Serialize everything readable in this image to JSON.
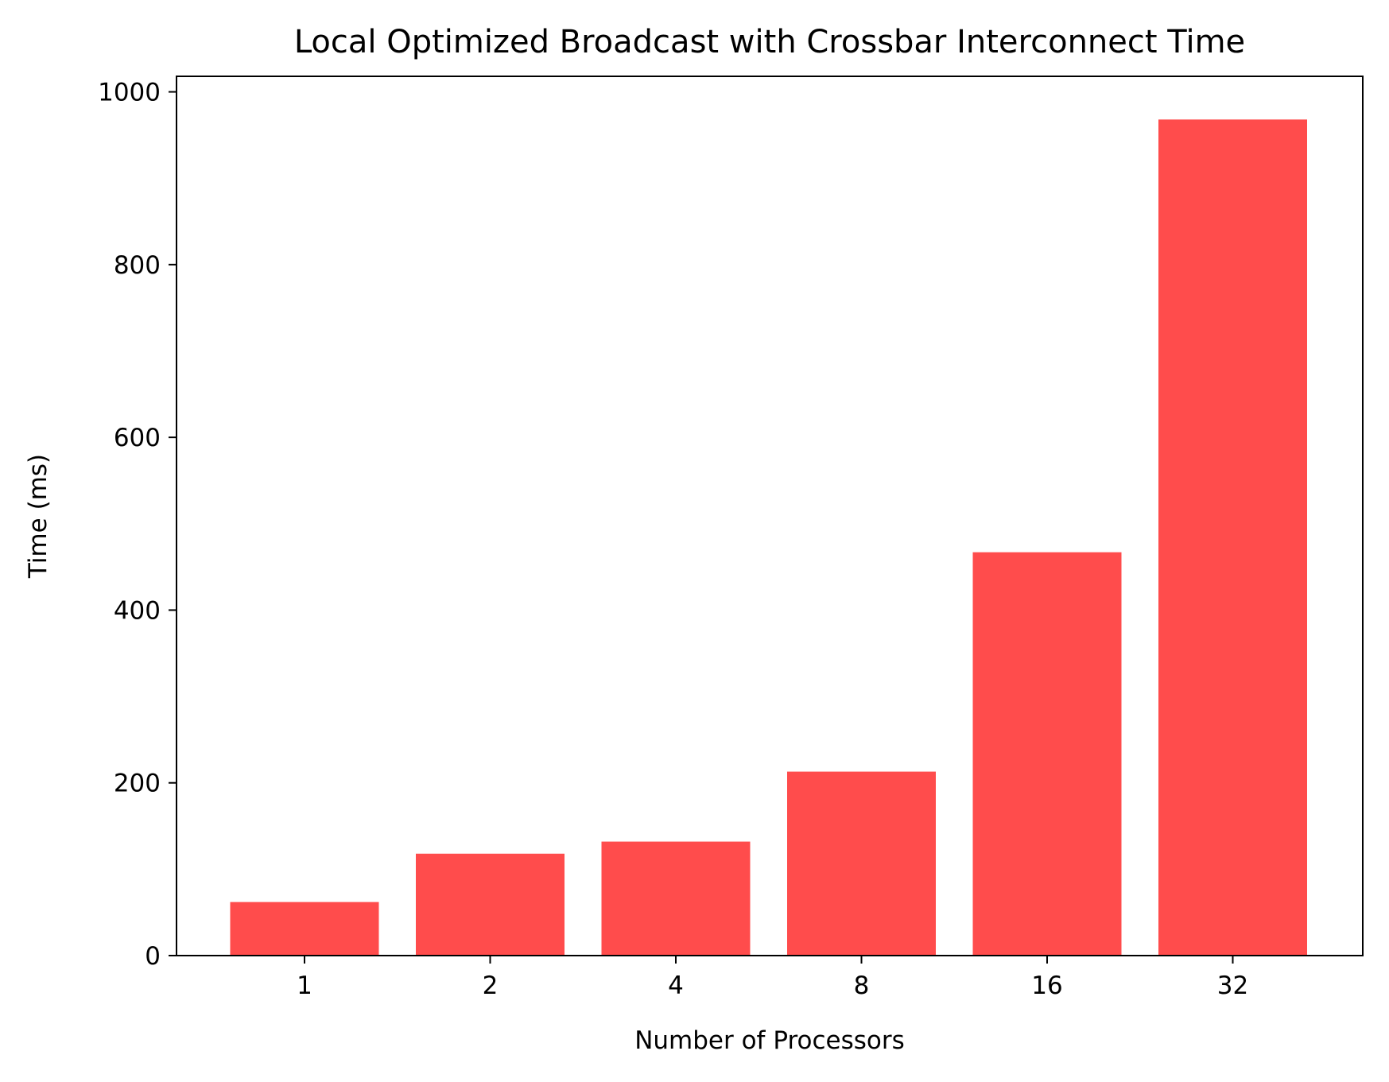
{
  "chart_data": {
    "type": "bar",
    "title": "Local Optimized Broadcast with Crossbar Interconnect Time",
    "xlabel": "Number of Processors",
    "ylabel": "Time (ms)",
    "categories": [
      "1",
      "2",
      "4",
      "8",
      "16",
      "32"
    ],
    "values": [
      62,
      118,
      132,
      213,
      467,
      968
    ],
    "ylim": [
      0,
      1018
    ],
    "yticks": [
      0,
      200,
      400,
      600,
      800,
      1000
    ],
    "bar_color": "#ff4c4c",
    "grid": false,
    "legend": "none"
  }
}
